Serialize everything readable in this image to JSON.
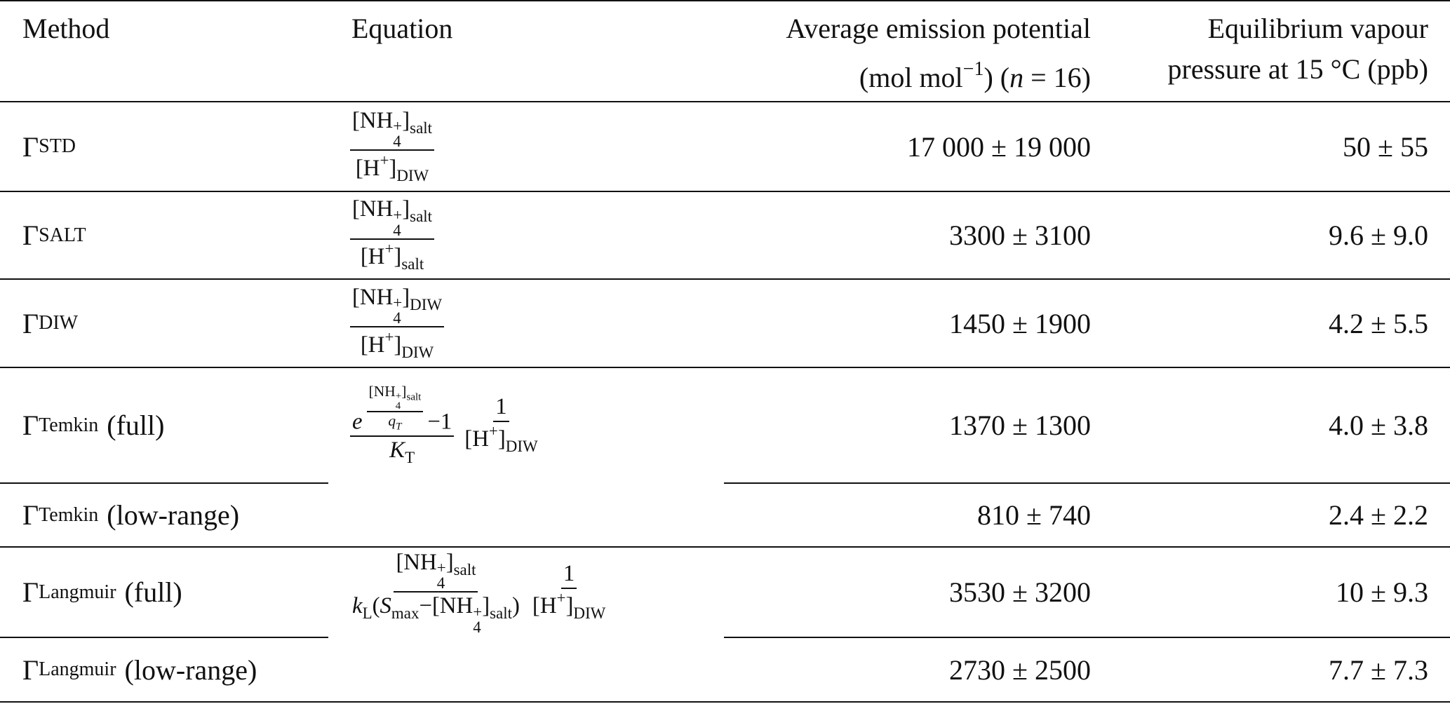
{
  "notation": {
    "open": "[",
    "close": "]"
  },
  "header": {
    "method": "Method",
    "equation": "Equation",
    "emission": [
      [
        {
          "text": "Average emission potential"
        }
      ],
      [
        {
          "text": "(mol mol"
        },
        {
          "text": "−1",
          "position": "super"
        },
        {
          "text": ") ("
        },
        {
          "text": "n",
          "italic": true
        },
        {
          "text": " = 16)"
        }
      ]
    ],
    "vapour": [
      [
        {
          "text": "Equilibrium vapour"
        }
      ],
      [
        {
          "text": "pressure at 15 °C (ppb)"
        }
      ]
    ]
  },
  "table": {
    "rows": [
      {
        "method": {
          "symbol": "Γ",
          "subscript": "STD"
        },
        "equation": [
          {
            "numerator": [
              {
                "species": "NH",
                "index": "4",
                "charge": "+",
                "phase": "salt"
              }
            ],
            "denominator": [
              {
                "species": "H",
                "charge": "+",
                "phase": "DIW"
              }
            ]
          }
        ],
        "emission": "17 000 ± 19 000",
        "vapour": "50 ± 55"
      },
      {
        "method": {
          "symbol": "Γ",
          "subscript": "SALT"
        },
        "equation": [
          {
            "numerator": [
              {
                "species": "NH",
                "index": "4",
                "charge": "+",
                "phase": "salt"
              }
            ],
            "denominator": [
              {
                "species": "H",
                "charge": "+",
                "phase": "salt"
              }
            ]
          }
        ],
        "emission": "3300 ± 3100",
        "vapour": "9.6 ± 9.0"
      },
      {
        "method": {
          "symbol": "Γ",
          "subscript": "DIW"
        },
        "equation": [
          {
            "numerator": [
              {
                "species": "NH",
                "index": "4",
                "charge": "+",
                "phase": "DIW"
              }
            ],
            "denominator": [
              {
                "species": "H",
                "charge": "+",
                "phase": "DIW"
              }
            ]
          }
        ],
        "emission": "1450 ± 1900",
        "vapour": "4.2 ± 5.5"
      },
      {
        "method": {
          "symbol": "Γ",
          "subscript": "Temkin",
          "qualifier": "(full)"
        },
        "equation": [
          {
            "numerator": [
              {
                "base": "e",
                "exponent": [
                  {
                    "numerator": [
                      {
                        "species": "NH",
                        "index": "4",
                        "charge": "+",
                        "phase": "salt"
                      }
                    ],
                    "denominator": [
                      {
                        "text": "q",
                        "italic": true
                      },
                      {
                        "text": "T",
                        "italic": true,
                        "position": "sub"
                      }
                    ]
                  }
                ]
              },
              {
                "text": "−1"
              }
            ],
            "denominator": [
              {
                "text": "K",
                "italic": true
              },
              {
                "text": "T",
                "position": "sub"
              }
            ]
          },
          {
            "numerator": [
              {
                "text": "1"
              }
            ],
            "denominator": [
              {
                "species": "H",
                "charge": "+",
                "phase": "DIW"
              }
            ]
          }
        ],
        "emission": "1370 ± 1300",
        "vapour": "4.0 ± 3.8"
      },
      {
        "method": {
          "symbol": "Γ",
          "subscript": "Temkin",
          "qualifier": "(low-range)"
        },
        "emission": "810 ± 740",
        "vapour": "2.4 ± 2.2"
      },
      {
        "method": {
          "symbol": "Γ",
          "subscript": "Langmuir",
          "qualifier": "(full)"
        },
        "equation": [
          {
            "numerator": [
              {
                "species": "NH",
                "index": "4",
                "charge": "+",
                "phase": "salt"
              }
            ],
            "denominator": [
              {
                "text": "k",
                "italic": true
              },
              {
                "text": "L",
                "position": "sub"
              },
              {
                "text": "("
              },
              {
                "text": "S",
                "italic": true
              },
              {
                "text": "max",
                "position": "sub"
              },
              {
                "text": "−"
              },
              {
                "species": "NH",
                "index": "4",
                "charge": "+",
                "phase": "salt"
              },
              {
                "text": ")"
              }
            ]
          },
          {
            "numerator": [
              {
                "text": "1"
              }
            ],
            "denominator": [
              {
                "species": "H",
                "charge": "+",
                "phase": "DIW"
              }
            ]
          }
        ],
        "emission": "3530 ± 3200",
        "vapour": "10 ± 9.3"
      },
      {
        "method": {
          "symbol": "Γ",
          "subscript": "Langmuir",
          "qualifier": "(low-range)"
        },
        "emission": "2730 ± 2500",
        "vapour": "7.7 ± 7.3"
      }
    ]
  }
}
